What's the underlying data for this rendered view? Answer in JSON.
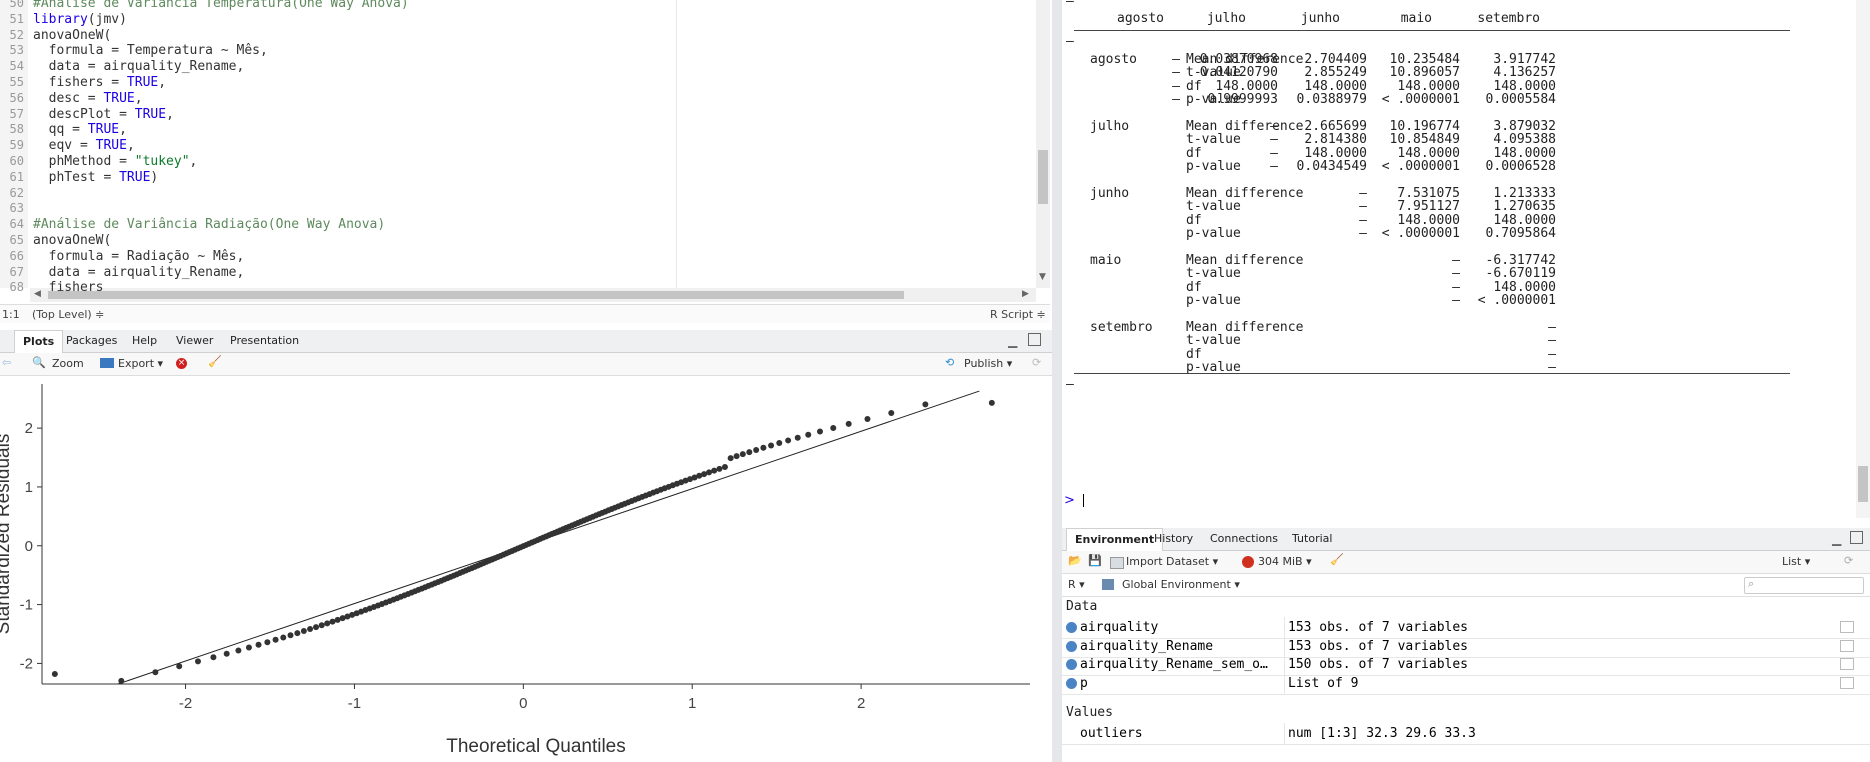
{
  "editor": {
    "lines": [
      {
        "n": "50",
        "segs": [
          {
            "t": "#Análise de Variância Temperatura(One Way Anova)",
            "c": "cm"
          }
        ]
      },
      {
        "n": "51",
        "segs": [
          {
            "t": "library",
            "c": "kw"
          },
          {
            "t": "(jmv)",
            "c": ""
          }
        ]
      },
      {
        "n": "52",
        "segs": [
          {
            "t": "anovaOneW(",
            "c": ""
          }
        ]
      },
      {
        "n": "53",
        "segs": [
          {
            "t": "  formula = Temperatura ~ Mês,",
            "c": ""
          }
        ]
      },
      {
        "n": "54",
        "segs": [
          {
            "t": "  data = airquality_Rename,",
            "c": ""
          }
        ]
      },
      {
        "n": "55",
        "segs": [
          {
            "t": "  fishers = ",
            "c": ""
          },
          {
            "t": "TRUE",
            "c": "kw"
          },
          {
            "t": ",",
            "c": ""
          }
        ]
      },
      {
        "n": "56",
        "segs": [
          {
            "t": "  desc = ",
            "c": ""
          },
          {
            "t": "TRUE",
            "c": "kw"
          },
          {
            "t": ",",
            "c": ""
          }
        ]
      },
      {
        "n": "57",
        "segs": [
          {
            "t": "  descPlot = ",
            "c": ""
          },
          {
            "t": "TRUE",
            "c": "kw"
          },
          {
            "t": ",",
            "c": ""
          }
        ]
      },
      {
        "n": "58",
        "segs": [
          {
            "t": "  qq = ",
            "c": ""
          },
          {
            "t": "TRUE",
            "c": "kw"
          },
          {
            "t": ",",
            "c": ""
          }
        ]
      },
      {
        "n": "59",
        "segs": [
          {
            "t": "  eqv = ",
            "c": ""
          },
          {
            "t": "TRUE",
            "c": "kw"
          },
          {
            "t": ",",
            "c": ""
          }
        ]
      },
      {
        "n": "60",
        "segs": [
          {
            "t": "  phMethod = ",
            "c": ""
          },
          {
            "t": "\"tukey\"",
            "c": "st"
          },
          {
            "t": ",",
            "c": ""
          }
        ]
      },
      {
        "n": "61",
        "segs": [
          {
            "t": "  phTest = ",
            "c": ""
          },
          {
            "t": "TRUE",
            "c": "kw"
          },
          {
            "t": ")",
            "c": ""
          }
        ]
      },
      {
        "n": "62",
        "segs": []
      },
      {
        "n": "63",
        "segs": []
      },
      {
        "n": "64",
        "segs": [
          {
            "t": "#Análise de Variância Radiação(One Way Anova)",
            "c": "cm"
          }
        ]
      },
      {
        "n": "65",
        "segs": [
          {
            "t": "anovaOneW(",
            "c": ""
          }
        ]
      },
      {
        "n": "66",
        "segs": [
          {
            "t": "  formula = Radiação ~ Mês,",
            "c": ""
          }
        ]
      },
      {
        "n": "67",
        "segs": [
          {
            "t": "  data = airquality_Rename,",
            "c": ""
          }
        ]
      },
      {
        "n": "68",
        "segs": [
          {
            "t": "  fishers",
            "c": ""
          }
        ]
      }
    ],
    "status_pos": "1:1",
    "status_scope": "(Top Level) ≑",
    "status_type": "R Script ≑"
  },
  "plots_pane": {
    "tabs": [
      "Plots",
      "Packages",
      "Help",
      "Viewer",
      "Presentation"
    ],
    "zoom": "Zoom",
    "export": "Export ▾",
    "publish": "Publish ▾"
  },
  "chart_data": {
    "type": "scatter",
    "title": "",
    "xlabel": "Theoretical Quantiles",
    "ylabel": "Standardized Residuals",
    "xlim": [
      -2.85,
      3.0
    ],
    "ylim": [
      -2.35,
      2.75
    ],
    "xticks": [
      "-2",
      "-1",
      "0",
      "1",
      "2"
    ],
    "yticks": [
      "-2",
      "-1",
      "0",
      "1",
      "2"
    ],
    "reference_line": {
      "x1": -2.4,
      "y1": -2.35,
      "x2": 2.7,
      "y2": 2.63
    }
  },
  "console": {
    "header": [
      "agosto",
      "julho",
      "junho",
      "maio",
      "setembro"
    ],
    "groups": [
      {
        "name": "agosto",
        "rows": [
          [
            "Mean difference",
            "—",
            "0.03870968",
            "2.704409",
            "10.235484",
            "3.917742"
          ],
          [
            "t-value",
            "—",
            "0.04120790",
            "2.855249",
            "10.896057",
            "4.136257"
          ],
          [
            "df",
            "—",
            "148.0000",
            "148.0000",
            "148.0000",
            "148.0000"
          ],
          [
            "p-value",
            "—",
            "0.9999993",
            "0.0388979",
            "< .0000001",
            "0.0005584"
          ]
        ]
      },
      {
        "name": "julho",
        "rows": [
          [
            "Mean difference",
            "",
            "—",
            "2.665699",
            "10.196774",
            "3.879032"
          ],
          [
            "t-value",
            "",
            "—",
            "2.814380",
            "10.854849",
            "4.095388"
          ],
          [
            "df",
            "",
            "—",
            "148.0000",
            "148.0000",
            "148.0000"
          ],
          [
            "p-value",
            "",
            "—",
            "0.0434549",
            "< .0000001",
            "0.0006528"
          ]
        ]
      },
      {
        "name": "junho",
        "rows": [
          [
            "Mean difference",
            "",
            "",
            "—",
            "7.531075",
            "1.213333"
          ],
          [
            "t-value",
            "",
            "",
            "—",
            "7.951127",
            "1.270635"
          ],
          [
            "df",
            "",
            "",
            "—",
            "148.0000",
            "148.0000"
          ],
          [
            "p-value",
            "",
            "",
            "—",
            "< .0000001",
            "0.7095864"
          ]
        ]
      },
      {
        "name": "maio",
        "rows": [
          [
            "Mean difference",
            "",
            "",
            "",
            "—",
            "-6.317742"
          ],
          [
            "t-value",
            "",
            "",
            "",
            "—",
            "-6.670119"
          ],
          [
            "df",
            "",
            "",
            "",
            "—",
            "148.0000"
          ],
          [
            "p-value",
            "",
            "",
            "",
            "—",
            "< .0000001"
          ]
        ]
      },
      {
        "name": "setembro",
        "rows": [
          [
            "Mean difference",
            "",
            "",
            "",
            "",
            "—"
          ],
          [
            "t-value",
            "",
            "",
            "",
            "",
            "—"
          ],
          [
            "df",
            "",
            "",
            "",
            "",
            "—"
          ],
          [
            "p-value",
            "",
            "",
            "",
            "",
            "—"
          ]
        ]
      }
    ],
    "prompt": ">"
  },
  "env_pane": {
    "tabs": [
      "Environment",
      "History",
      "Connections",
      "Tutorial"
    ],
    "import": "Import Dataset ▾",
    "memory": "304 MiB ▾",
    "list_view": "List ▾",
    "lang": "R ▾",
    "scope": "Global Environment ▾",
    "data_header": "Data",
    "data_rows": [
      {
        "name": "airquality",
        "value": "153 obs. of 7 variables"
      },
      {
        "name": "airquality_Rename",
        "value": "153 obs. of 7 variables"
      },
      {
        "name": "airquality_Rename_sem_o…",
        "value": "150 obs. of 7 variables"
      },
      {
        "name": "p",
        "value": "List of  9"
      }
    ],
    "values_header": "Values",
    "value_rows": [
      {
        "name": "outliers",
        "value": "num [1:3] 32.3 29.6 33.3"
      }
    ]
  }
}
